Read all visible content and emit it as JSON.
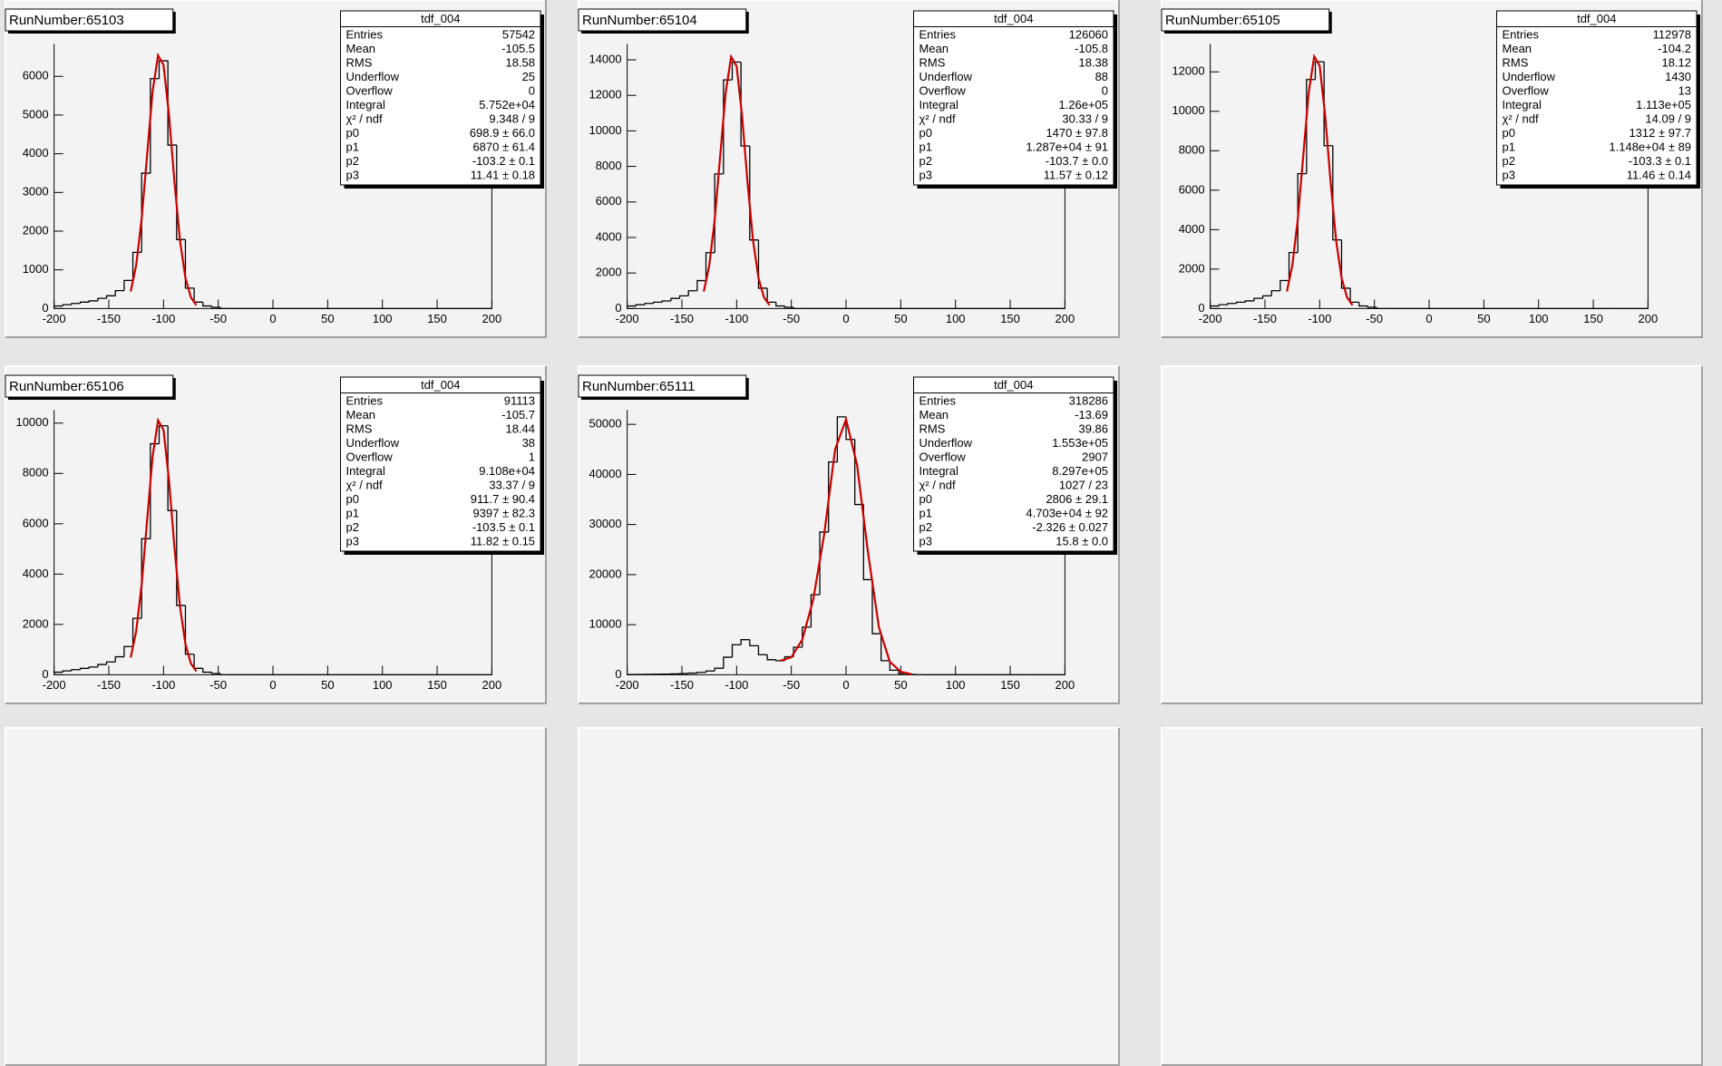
{
  "chart_data": [
    {
      "type": "histogram",
      "title": "RunNumber:65103",
      "color": "#000000",
      "bins": [
        -200,
        -192,
        -184,
        -176,
        -168,
        -160,
        -152,
        -144,
        -136,
        -128,
        -120,
        -112,
        -104,
        -96,
        -88,
        -80,
        -72,
        -64,
        -56,
        -48,
        -40,
        -32,
        -24,
        -16,
        -8,
        0,
        8,
        16,
        24,
        32,
        40,
        48,
        56,
        64,
        72,
        80,
        88,
        96,
        104,
        112,
        120,
        128,
        136,
        144,
        152,
        160,
        168,
        176,
        184,
        192,
        200
      ],
      "counts": [
        66,
        99,
        132,
        165,
        198,
        264,
        330,
        462,
        726,
        1452,
        3498,
        5940,
        6402,
        4224,
        1782,
        528,
        165,
        66,
        33,
        0,
        0,
        0,
        0,
        0,
        0,
        0,
        0,
        0,
        0,
        0,
        0,
        0,
        0,
        0,
        0,
        0,
        0,
        0,
        0,
        0,
        0,
        0,
        0,
        0,
        0,
        0,
        0,
        0,
        0,
        0
      ],
      "fit": {
        "color": "#cc0000",
        "x": [
          -130,
          -125,
          -120,
          -115,
          -110,
          -105,
          -100,
          -95,
          -90,
          -85,
          -80,
          -75,
          -70
        ],
        "values": [
          442,
          1115,
          2317,
          3967,
          5610,
          6541,
          6296,
          5003,
          3274,
          1769,
          792,
          290,
          86
        ]
      },
      "xlim": [
        -200,
        200
      ],
      "xticks": [
        -200,
        -150,
        -100,
        -50,
        0,
        50,
        100,
        150,
        200
      ],
      "ylim": [
        0,
        6840
      ],
      "yticks": [
        0,
        1000,
        2000,
        3000,
        4000,
        5000,
        6000
      ],
      "stats": {
        "title": "tdf_004",
        "rows": [
          [
            "Entries",
            "57542"
          ],
          [
            "Mean",
            "-105.5"
          ],
          [
            "RMS",
            "18.58"
          ],
          [
            "Underflow",
            "25"
          ],
          [
            "Overflow",
            "0"
          ],
          [
            "Integral",
            "5.752e+04"
          ],
          [
            "χ² / ndf",
            "9.348 / 9"
          ],
          [
            "p0",
            "698.9 ± 66.0"
          ],
          [
            "p1",
            "6870 ± 61.4"
          ],
          [
            "p2",
            "-103.2 ± 0.1"
          ],
          [
            "p3",
            "11.41 ± 0.18"
          ]
        ]
      }
    },
    {
      "type": "histogram",
      "title": "RunNumber:65104",
      "color": "#000000",
      "bins": [
        -200,
        -192,
        -184,
        -176,
        -168,
        -160,
        -152,
        -144,
        -136,
        -128,
        -120,
        -112,
        -104,
        -96,
        -88,
        -80,
        -72,
        -64,
        -56,
        -48,
        -40,
        -32,
        -24,
        -16,
        -8,
        0,
        8,
        16,
        24,
        32,
        40,
        48,
        56,
        64,
        72,
        80,
        88,
        96,
        104,
        112,
        120,
        128,
        136,
        144,
        152,
        160,
        168,
        176,
        184,
        192,
        200
      ],
      "counts": [
        143,
        215,
        286,
        358,
        429,
        572,
        715,
        1001,
        1573,
        3146,
        7579,
        12870,
        13871,
        9152,
        3861,
        1144,
        358,
        143,
        72,
        0,
        0,
        0,
        0,
        0,
        0,
        0,
        0,
        0,
        0,
        0,
        0,
        0,
        0,
        0,
        0,
        0,
        0,
        0,
        0,
        0,
        0,
        0,
        0,
        0,
        0,
        0,
        0,
        0,
        0,
        0
      ],
      "fit": {
        "color": "#cc0000",
        "x": [
          -130,
          -125,
          -120,
          -115,
          -110,
          -105,
          -100,
          -95,
          -90,
          -85,
          -80,
          -75,
          -70
        ],
        "values": [
          958,
          2417,
          5019,
          8594,
          12155,
          14171,
          13642,
          10839,
          7093,
          3832,
          1716,
          629,
          186
        ]
      },
      "xlim": [
        -200,
        200
      ],
      "xticks": [
        -200,
        -150,
        -100,
        -50,
        0,
        50,
        100,
        150,
        200
      ],
      "ylim": [
        0,
        14900
      ],
      "yticks": [
        0,
        2000,
        4000,
        6000,
        8000,
        10000,
        12000,
        14000
      ],
      "stats": {
        "title": "tdf_004",
        "rows": [
          [
            "Entries",
            "126060"
          ],
          [
            "Mean",
            "-105.8"
          ],
          [
            "RMS",
            "18.38"
          ],
          [
            "Underflow",
            "88"
          ],
          [
            "Overflow",
            "0"
          ],
          [
            "Integral",
            "1.26e+05"
          ],
          [
            "χ² / ndf",
            "30.33 / 9"
          ],
          [
            "p0",
            "1470 ± 97.8"
          ],
          [
            "p1",
            "1.287e+04 ± 91"
          ],
          [
            "p2",
            "-103.7 ± 0.0"
          ],
          [
            "p3",
            "11.57 ± 0.12"
          ]
        ]
      }
    },
    {
      "type": "histogram",
      "title": "RunNumber:65105",
      "color": "#000000",
      "bins": [
        -200,
        -192,
        -184,
        -176,
        -168,
        -160,
        -152,
        -144,
        -136,
        -128,
        -120,
        -112,
        -104,
        -96,
        -88,
        -80,
        -72,
        -64,
        -56,
        -48,
        -40,
        -32,
        -24,
        -16,
        -8,
        0,
        8,
        16,
        24,
        32,
        40,
        48,
        56,
        64,
        72,
        80,
        88,
        96,
        104,
        112,
        120,
        128,
        136,
        144,
        152,
        160,
        168,
        176,
        184,
        192,
        200
      ],
      "counts": [
        129,
        194,
        258,
        323,
        387,
        516,
        645,
        903,
        1419,
        2838,
        6837,
        11610,
        12513,
        8256,
        3483,
        1032,
        323,
        129,
        65,
        0,
        0,
        0,
        0,
        0,
        0,
        0,
        0,
        0,
        0,
        0,
        0,
        0,
        0,
        0,
        0,
        0,
        0,
        0,
        0,
        0,
        0,
        0,
        0,
        0,
        0,
        0,
        0,
        0,
        0,
        0
      ],
      "fit": {
        "color": "#cc0000",
        "x": [
          -130,
          -125,
          -120,
          -115,
          -110,
          -105,
          -100,
          -95,
          -90,
          -85,
          -80,
          -75,
          -70
        ],
        "values": [
          864,
          2180,
          4528,
          7753,
          10965,
          12784,
          12307,
          9778,
          6398,
          3457,
          1548,
          568,
          168
        ]
      },
      "xlim": [
        -200,
        200
      ],
      "xticks": [
        -200,
        -150,
        -100,
        -50,
        0,
        50,
        100,
        150,
        200
      ],
      "ylim": [
        0,
        13420
      ],
      "yticks": [
        0,
        2000,
        4000,
        6000,
        8000,
        10000,
        12000
      ],
      "stats": {
        "title": "tdf_004",
        "rows": [
          [
            "Entries",
            "112978"
          ],
          [
            "Mean",
            "-104.2"
          ],
          [
            "RMS",
            "18.12"
          ],
          [
            "Underflow",
            "1430"
          ],
          [
            "Overflow",
            "13"
          ],
          [
            "Integral",
            "1.113e+05"
          ],
          [
            "χ² / ndf",
            "14.09 / 9"
          ],
          [
            "p0",
            "1312 ± 97.7"
          ],
          [
            "p1",
            "1.148e+04 ± 89"
          ],
          [
            "p2",
            "-103.3 ± 0.1"
          ],
          [
            "p3",
            "11.46 ± 0.14"
          ]
        ]
      }
    },
    {
      "type": "histogram",
      "title": "RunNumber:65106",
      "color": "#000000",
      "bins": [
        -200,
        -192,
        -184,
        -176,
        -168,
        -160,
        -152,
        -144,
        -136,
        -128,
        -120,
        -112,
        -104,
        -96,
        -88,
        -80,
        -72,
        -64,
        -56,
        -48,
        -40,
        -32,
        -24,
        -16,
        -8,
        0,
        8,
        16,
        24,
        32,
        40,
        48,
        56,
        64,
        72,
        80,
        88,
        96,
        104,
        112,
        120,
        128,
        136,
        144,
        152,
        160,
        168,
        176,
        184,
        192,
        200
      ],
      "counts": [
        102,
        153,
        204,
        255,
        306,
        408,
        510,
        714,
        1122,
        2244,
        5406,
        9180,
        9894,
        6528,
        2754,
        816,
        255,
        102,
        51,
        0,
        0,
        0,
        0,
        0,
        0,
        0,
        0,
        0,
        0,
        0,
        0,
        0,
        0,
        0,
        0,
        0,
        0,
        0,
        0,
        0,
        0,
        0,
        0,
        0,
        0,
        0,
        0,
        0,
        0,
        0
      ],
      "fit": {
        "color": "#cc0000",
        "x": [
          -130,
          -125,
          -120,
          -115,
          -110,
          -105,
          -100,
          -95,
          -90,
          -85,
          -80,
          -75,
          -70
        ],
        "values": [
          683,
          1724,
          3580,
          6130,
          8670,
          10108,
          9731,
          7732,
          5059,
          2734,
          1224,
          449,
          133
        ]
      },
      "xlim": [
        -200,
        200
      ],
      "xticks": [
        -200,
        -150,
        -100,
        -50,
        0,
        50,
        100,
        150,
        200
      ],
      "ylim": [
        0,
        10520
      ],
      "yticks": [
        0,
        2000,
        4000,
        6000,
        8000,
        10000
      ],
      "stats": {
        "title": "tdf_004",
        "rows": [
          [
            "Entries",
            "91113"
          ],
          [
            "Mean",
            "-105.7"
          ],
          [
            "RMS",
            "18.44"
          ],
          [
            "Underflow",
            "38"
          ],
          [
            "Overflow",
            "1"
          ],
          [
            "Integral",
            "9.108e+04"
          ],
          [
            "χ² / ndf",
            "33.37 / 9"
          ],
          [
            "p0",
            "911.7 ± 90.4"
          ],
          [
            "p1",
            "9397 ± 82.3"
          ],
          [
            "p2",
            "-103.5 ± 0.1"
          ],
          [
            "p3",
            "11.82 ± 0.15"
          ]
        ]
      }
    },
    {
      "type": "histogram",
      "title": "RunNumber:65111",
      "color": "#000000",
      "bins": [
        -200,
        -192,
        -184,
        -176,
        -168,
        -160,
        -152,
        -144,
        -136,
        -128,
        -120,
        -112,
        -104,
        -96,
        -88,
        -80,
        -72,
        -64,
        -56,
        -48,
        -40,
        -32,
        -24,
        -16,
        -8,
        0,
        8,
        16,
        24,
        32,
        40,
        48,
        56,
        64,
        72,
        80,
        88,
        96,
        104,
        112,
        120,
        128,
        136,
        144,
        152,
        160,
        168,
        176,
        184,
        192,
        200
      ],
      "counts": [
        50,
        60,
        80,
        100,
        130,
        170,
        240,
        330,
        480,
        750,
        1300,
        3500,
        6000,
        7000,
        5800,
        4000,
        3000,
        2800,
        3600,
        5500,
        9500,
        16000,
        28500,
        42500,
        51500,
        47000,
        34000,
        19000,
        8200,
        2800,
        900,
        250,
        60,
        0,
        0,
        0,
        0,
        0,
        0,
        0,
        0,
        0,
        0,
        0,
        0,
        0,
        0,
        0,
        0,
        0
      ],
      "fit": {
        "color": "#cc0000",
        "x": [
          -60,
          -50,
          -40,
          -30,
          -20,
          -10,
          0,
          10,
          20,
          30,
          40,
          50,
          60
        ],
        "values": [
          2800,
          3500,
          7000,
          15000,
          28000,
          45000,
          51000,
          42000,
          24500,
          9500,
          2600,
          600,
          100
        ]
      },
      "xlim": [
        -200,
        200
      ],
      "xticks": [
        -200,
        -150,
        -100,
        -50,
        0,
        50,
        100,
        150,
        200
      ],
      "ylim": [
        0,
        52860
      ],
      "yticks": [
        0,
        10000,
        20000,
        30000,
        40000,
        50000
      ],
      "stats": {
        "title": "tdf_004",
        "rows": [
          [
            "Entries",
            "318286"
          ],
          [
            "Mean",
            "-13.69"
          ],
          [
            "RMS",
            "39.86"
          ],
          [
            "Underflow",
            "1.553e+05"
          ],
          [
            "Overflow",
            "2907"
          ],
          [
            "Integral",
            "8.297e+05"
          ],
          [
            "χ² / ndf",
            "1027 / 23"
          ],
          [
            "p0",
            "2806 ± 29.1"
          ],
          [
            "p1",
            "4.703e+04 ± 92"
          ],
          [
            "p2",
            "-2.326 ± 0.027"
          ],
          [
            "p3",
            "15.8 ± 0.0"
          ]
        ]
      }
    }
  ]
}
